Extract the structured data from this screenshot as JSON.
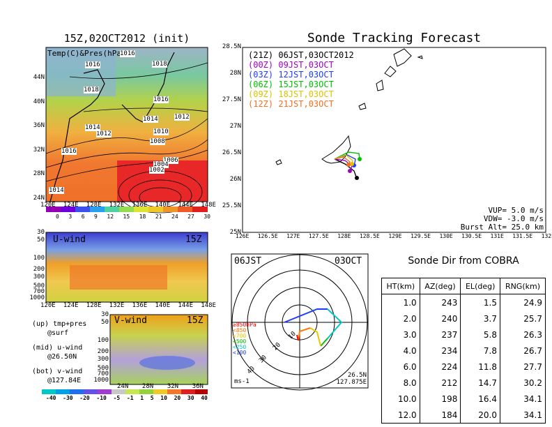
{
  "panels": {
    "map_title": "15Z,02OCT2012 (init)",
    "map_overlay_label": "Temp(C)&Pres(hPa)",
    "map_lat_labels": [
      "44N",
      "40N",
      "36N",
      "32N",
      "28N",
      "24N"
    ],
    "map_lon_labels": [
      "120E",
      "124E",
      "128E",
      "132E",
      "136E",
      "140E",
      "144E",
      "148E"
    ],
    "isobar_labels": [
      "1016",
      "1016",
      "1018",
      "1018",
      "1016",
      "1014",
      "1012",
      "1012",
      "1014",
      "1010",
      "1008",
      "1016",
      "1006",
      "1004",
      "1002",
      "1014"
    ],
    "temp_colorbar": [
      "0",
      "3",
      "6",
      "9",
      "12",
      "15",
      "18",
      "21",
      "24",
      "27",
      "30"
    ],
    "uwind_label": "U-wind",
    "uwind_time": "15Z",
    "uwind_levels": [
      "30",
      "50",
      "100",
      "200",
      "300",
      "500",
      "700",
      "1000"
    ],
    "uwind_lon_labels": [
      "120E",
      "124E",
      "128E",
      "132E",
      "136E",
      "140E",
      "144E",
      "148E"
    ],
    "vwind_label": "V-wind",
    "vwind_time": "15Z",
    "vwind_levels": [
      "30",
      "50",
      "100",
      "200",
      "300",
      "500",
      "700",
      "1000"
    ],
    "vwind_lat_labels": [
      "24N",
      "28N",
      "32N",
      "36N"
    ],
    "wind_colorbar": [
      "-40",
      "-30",
      "-20",
      "-10",
      "-5",
      "-1",
      "1",
      "5",
      "10",
      "20",
      "30",
      "40"
    ],
    "legend_notes": [
      "(up) tmp+pres",
      "@surf",
      "(mid) u-wind",
      "@26.50N",
      "(bot) v-wind",
      "@127.84E"
    ]
  },
  "tracking": {
    "title": "Sonde Tracking Forecast",
    "legend": [
      {
        "text": "(21Z) 06JST,03OCT2012",
        "color": "#000000"
      },
      {
        "text": "(00Z) 09JST,03OCT",
        "color": "#a000c0"
      },
      {
        "text": "(03Z) 12JST,03OCT",
        "color": "#1e3cff"
      },
      {
        "text": "(06Z) 15JST,03OCT",
        "color": "#00c000"
      },
      {
        "text": "(09Z) 18JST,03OCT",
        "color": "#e0c000"
      },
      {
        "text": "(12Z) 21JST,03OCT",
        "color": "#f07020"
      }
    ],
    "params": [
      "VUP= 5.0 m/s",
      "VDW= -3.0 m/s",
      "Burst Alt= 25.0 km"
    ],
    "lat_labels": [
      "28.5N",
      "28N",
      "27.5N",
      "27N",
      "26.5N",
      "26N",
      "25.5N",
      "25N"
    ],
    "lon_labels": [
      "126E",
      "126.5E",
      "127E",
      "127.5E",
      "128E",
      "128.5E",
      "129E",
      "129.5E",
      "130E",
      "130.5E",
      "131E",
      "131.5E",
      "132E"
    ]
  },
  "polar": {
    "label_left": "06JST",
    "label_right": "03OCT",
    "units": "ms-1",
    "location": [
      "26.5N",
      "127.875E"
    ],
    "ring_labels": [
      "10",
      "20",
      "30",
      "40"
    ],
    "pressure_legend": [
      {
        "text": "≥850hPa",
        "color": "#ff0000"
      },
      {
        "text": "<850",
        "color": "#ff7800"
      },
      {
        "text": "<700",
        "color": "#e8c800"
      },
      {
        "text": "<500",
        "color": "#00c000"
      },
      {
        "text": "<250",
        "color": "#00c8c8"
      },
      {
        "text": "<100",
        "color": "#1e3cff"
      }
    ]
  },
  "cobra_table": {
    "title": "Sonde Dir from COBRA",
    "headers": [
      "HT(km)",
      "AZ(deg)",
      "EL(deg)",
      "RNG(km)"
    ],
    "rows": [
      [
        "1.0",
        "243",
        "1.5",
        "24.9"
      ],
      [
        "2.0",
        "240",
        "3.7",
        "25.7"
      ],
      [
        "3.0",
        "237",
        "5.8",
        "26.3"
      ],
      [
        "4.0",
        "234",
        "7.8",
        "26.7"
      ],
      [
        "6.0",
        "224",
        "11.8",
        "27.7"
      ],
      [
        "8.0",
        "212",
        "14.7",
        "30.2"
      ],
      [
        "10.0",
        "198",
        "16.4",
        "34.1"
      ],
      [
        "12.0",
        "184",
        "20.0",
        "34.1"
      ]
    ]
  },
  "chart_data": [
    {
      "type": "heatmap",
      "title": "15Z,02OCT2012 (init)",
      "variable": "Temp(C)&Pres(hPa)",
      "x_range": [
        "120E",
        "150E"
      ],
      "y_range": [
        "22N",
        "48N"
      ],
      "colorbar_ticks": [
        0,
        3,
        6,
        9,
        12,
        15,
        18,
        21,
        24,
        27,
        30
      ]
    },
    {
      "type": "heatmap",
      "title": "U-wind",
      "x_range": [
        "120E",
        "150E"
      ],
      "y_levels_hPa": [
        30,
        50,
        100,
        200,
        300,
        500,
        700,
        1000
      ]
    },
    {
      "type": "heatmap",
      "title": "V-wind",
      "x_range": [
        "22N",
        "38N"
      ],
      "y_levels_hPa": [
        30,
        50,
        100,
        200,
        300,
        500,
        700,
        1000
      ],
      "colorbar_ticks": [
        -40,
        -30,
        -20,
        -10,
        -5,
        -1,
        1,
        5,
        10,
        20,
        30,
        40
      ]
    },
    {
      "type": "line",
      "title": "Sonde Tracking Forecast",
      "xlim": [
        126,
        132
      ],
      "ylim": [
        25,
        28.5
      ],
      "launch": [
        128.0,
        26.35
      ],
      "series": [
        {
          "name": "(21Z) 06JST,03OCT2012",
          "color": "#000000",
          "end": [
            128.45,
            26.07
          ]
        },
        {
          "name": "(00Z) 09JST,03OCT",
          "color": "#a000c0",
          "end": [
            128.32,
            26.22
          ]
        },
        {
          "name": "(03Z) 12JST,03OCT",
          "color": "#1e3cff",
          "end": [
            128.36,
            26.33
          ]
        },
        {
          "name": "(06Z) 15JST,03OCT",
          "color": "#00c000",
          "end": [
            128.48,
            26.4
          ]
        },
        {
          "name": "(09Z) 18JST,03OCT",
          "color": "#e0c000",
          "end": [
            128.3,
            26.36
          ]
        },
        {
          "name": "(12Z) 21JST,03OCT",
          "color": "#f07020",
          "end": [
            128.25,
            26.38
          ]
        }
      ]
    },
    {
      "type": "table",
      "title": "Sonde Dir from COBRA",
      "columns": [
        "HT(km)",
        "AZ(deg)",
        "EL(deg)",
        "RNG(km)"
      ],
      "rows": [
        [
          1.0,
          243,
          1.5,
          24.9
        ],
        [
          2.0,
          240,
          3.7,
          25.7
        ],
        [
          3.0,
          237,
          5.8,
          26.3
        ],
        [
          4.0,
          234,
          7.8,
          26.7
        ],
        [
          6.0,
          224,
          11.8,
          27.7
        ],
        [
          8.0,
          212,
          14.7,
          30.2
        ],
        [
          10.0,
          198,
          16.4,
          34.1
        ],
        [
          12.0,
          184,
          20.0,
          34.1
        ]
      ]
    }
  ]
}
